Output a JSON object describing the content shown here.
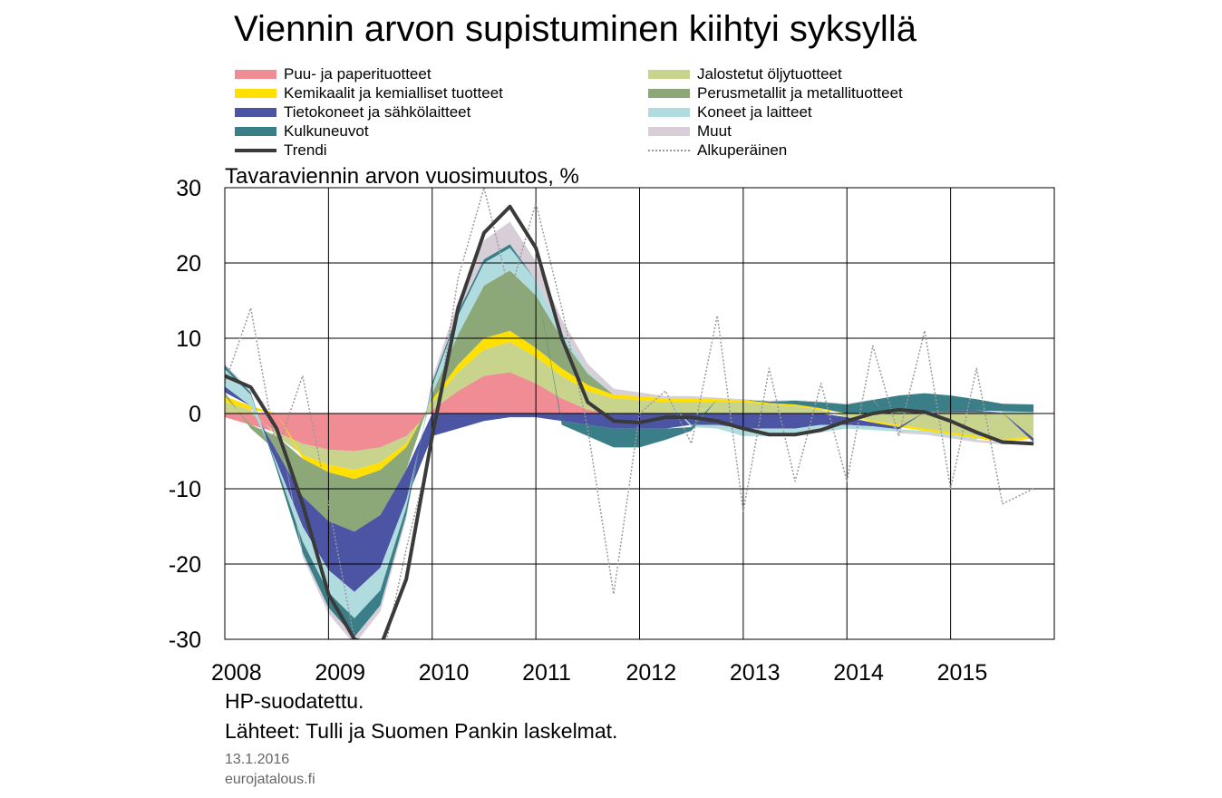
{
  "title": "Viennin arvon supistuminen kiihtyi syksyllä",
  "ylabel": "Tavaraviennin arvon vuosimuutos, %",
  "notes": [
    "HP-suodatettu.",
    "Lähteet: Tulli ja Suomen Pankin laskelmat."
  ],
  "date": "13.1.2016",
  "site": "eurojatalous.fi",
  "chart_data": {
    "type": "area",
    "ylim": [
      -30,
      30
    ],
    "yticks": [
      30,
      20,
      10,
      0,
      -10,
      -20,
      -30
    ],
    "xlim": [
      2008,
      2016
    ],
    "xticks": [
      "2008",
      "2009",
      "2010",
      "2011",
      "2012",
      "2013",
      "2014",
      "2015"
    ],
    "grid": true,
    "legend_position": "top",
    "x": [
      2008.0,
      2008.25,
      2008.5,
      2008.75,
      2009.0,
      2009.25,
      2009.5,
      2009.75,
      2010.0,
      2010.25,
      2010.5,
      2010.75,
      2011.0,
      2011.25,
      2011.5,
      2011.75,
      2012.0,
      2012.25,
      2012.5,
      2012.75,
      2013.0,
      2013.25,
      2013.5,
      2013.75,
      2014.0,
      2014.25,
      2014.5,
      2014.75,
      2015.0,
      2015.25,
      2015.5,
      2015.8
    ],
    "series": [
      {
        "name": "Puu- ja paperituotteet",
        "color": "#f08c94",
        "type": "area",
        "values": [
          -0.5,
          -1.5,
          -2.5,
          -4,
          -4.8,
          -5,
          -4.5,
          -3,
          0.5,
          3,
          5,
          5.5,
          4,
          2,
          0.5,
          0,
          0,
          0,
          0,
          0,
          0,
          0,
          0,
          0,
          0,
          0,
          0,
          0,
          0,
          0,
          0,
          0
        ]
      },
      {
        "name": "Jalostetut öljytuotteet",
        "color": "#c8d48c",
        "type": "area",
        "values": [
          1.5,
          0.5,
          -0.5,
          -1.5,
          -2,
          -2.5,
          -2,
          -1,
          1,
          2.5,
          3.5,
          4,
          3.5,
          3,
          2.5,
          2,
          1.8,
          1.5,
          1.5,
          1.5,
          1.5,
          1.2,
          1,
          0.5,
          -0.5,
          -1,
          -1.5,
          -2,
          -2.5,
          -3,
          -3.5,
          -3
        ]
      },
      {
        "name": "Kemikaalit ja kemialliset tuotteet",
        "color": "#ffe000",
        "type": "area",
        "values": [
          0.8,
          0.5,
          0,
          -0.5,
          -1,
          -1.2,
          -1,
          -0.5,
          0.3,
          1,
          1.5,
          1.5,
          1.2,
          1,
          0.8,
          0.5,
          0.5,
          0.5,
          0.5,
          0.4,
          0.3,
          0.2,
          0.2,
          0.2,
          0,
          -0.2,
          -0.3,
          -0.3,
          -0.3,
          -0.3,
          -0.3,
          -0.3
        ]
      },
      {
        "name": "Perusmetallit ja metallituotteet",
        "color": "#8ca878",
        "type": "area",
        "values": [
          0.5,
          -0.5,
          -2,
          -5,
          -6.5,
          -7,
          -6,
          -3,
          0.8,
          4,
          7,
          8,
          7,
          4,
          1.5,
          0,
          0,
          0,
          0,
          0,
          0,
          0,
          0,
          0,
          0,
          0,
          0.2,
          0.2,
          0.2,
          0.2,
          0.1,
          0.1
        ]
      },
      {
        "name": "Tietokoneet ja sähkölaitteet",
        "color": "#4c54a4",
        "type": "area",
        "values": [
          0.8,
          0,
          -1.5,
          -4,
          -6.5,
          -8,
          -7,
          -4,
          -3,
          -2,
          -1,
          -0.5,
          -0.5,
          -1,
          -1.5,
          -2,
          -2,
          -2,
          -1.5,
          -1.5,
          -2,
          -2,
          -2,
          -1.5,
          -1,
          -0.5,
          -0.3,
          0,
          0.2,
          0.2,
          0,
          -0.5
        ]
      },
      {
        "name": "Koneet ja laitteet",
        "color": "#b0dce0",
        "type": "area",
        "values": [
          2.3,
          1.5,
          -0.5,
          -2,
          -3,
          -3.5,
          -3,
          -1,
          1,
          2.5,
          3,
          3,
          2,
          1,
          0.3,
          0,
          0,
          0,
          -0.3,
          -0.5,
          -1,
          -1,
          -1,
          -1,
          -0.5,
          -0.5,
          -0.3,
          -0.2,
          -0.2,
          -0.2,
          0.2,
          0.1
        ]
      },
      {
        "name": "Kulkuneuvot",
        "color": "#3a7f88",
        "type": "area",
        "values": [
          0.5,
          0.3,
          -0.5,
          -1.5,
          -2,
          -2.5,
          -2,
          -1,
          0.5,
          0.5,
          0.5,
          0.5,
          0,
          -0.5,
          -1.5,
          -2.5,
          -2.5,
          -1.5,
          -0.5,
          0,
          0,
          0.2,
          0.5,
          0.8,
          1.2,
          1.8,
          2.2,
          2.5,
          2,
          1.5,
          1,
          1
        ]
      },
      {
        "name": "Muut",
        "color": "#d8ced8",
        "type": "area",
        "values": [
          0.2,
          0.2,
          0,
          -0.5,
          -0.8,
          -1,
          -0.8,
          -0.5,
          0.5,
          1.5,
          2.5,
          3,
          2.5,
          1.5,
          1,
          0.8,
          0.5,
          0.3,
          0.3,
          0.2,
          0.1,
          0.1,
          0.1,
          0.1,
          0.1,
          0.1,
          -0.2,
          -0.3,
          -0.3,
          -0.3,
          -0.3,
          -0.3
        ]
      },
      {
        "name": "Trendi",
        "color": "#3a3a3a",
        "type": "line",
        "values": [
          5,
          3.5,
          -2,
          -12,
          -24,
          -30,
          -31,
          -22,
          -3,
          14,
          24,
          27.5,
          22,
          10,
          1.5,
          -1,
          -1.2,
          -0.5,
          -0.5,
          -1,
          -2,
          -2.8,
          -2.8,
          -2.2,
          -1,
          0,
          0.5,
          0.2,
          -1,
          -2.5,
          -3.8,
          -4
        ]
      },
      {
        "name": "Alkuperäinen",
        "color": "#999999",
        "type": "line",
        "values": [
          4,
          14,
          -5,
          5,
          -12,
          -30,
          -34,
          -18,
          -4,
          18,
          30,
          16,
          28,
          14,
          -2,
          -24,
          0,
          3,
          -4,
          13,
          -13,
          6,
          -9,
          4,
          -9,
          9,
          -3,
          11,
          -10,
          6,
          -12,
          -10
        ]
      }
    ]
  }
}
